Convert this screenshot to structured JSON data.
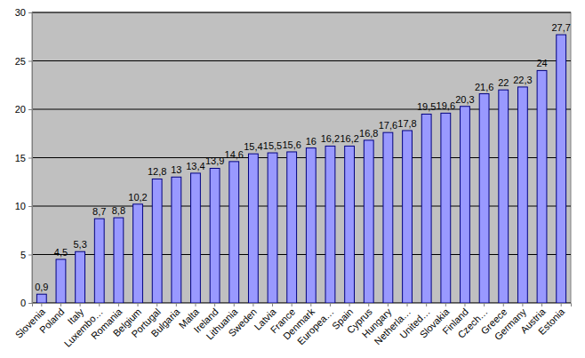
{
  "chart_data": {
    "type": "bar",
    "categories": [
      "Slovenia",
      "Poland",
      "Italy",
      "Luxembo…",
      "Romania",
      "Belgium",
      "Portugal",
      "Bulgaria",
      "Malta",
      "Ireland",
      "Lithuania",
      "Sweden",
      "Latvia",
      "France",
      "Denmark",
      "Europea…",
      "Spain",
      "Cyprus",
      "Hungary",
      "Netherla…",
      "United…",
      "Slovakia",
      "Finland",
      "Czech…",
      "Greece",
      "Germany",
      "Austria",
      "Estonia"
    ],
    "values": [
      0.9,
      4.5,
      5.3,
      8.7,
      8.8,
      10.2,
      12.8,
      13,
      13.4,
      13.9,
      14.6,
      15.4,
      15.5,
      15.6,
      16,
      16.2,
      16.2,
      16.8,
      17.6,
      17.8,
      19.5,
      19.6,
      20.3,
      21.6,
      22,
      22.3,
      24,
      27.7
    ],
    "value_labels": [
      "0,9",
      "4,5",
      "5,3",
      "8,7",
      "8,8",
      "10,2",
      "12,8",
      "13",
      "13,4",
      "13,9",
      "14,6",
      "15,4",
      "15,5",
      "15,6",
      "16",
      "16,2",
      "16,2",
      "16,8",
      "17,6",
      "17,8",
      "19,5",
      "19,6",
      "20,3",
      "21,6",
      "22",
      "22,3",
      "24",
      "27,7"
    ],
    "color": "#9999ff",
    "ylim": [
      0,
      30
    ],
    "yticks": [
      0,
      5,
      10,
      15,
      20,
      25,
      30
    ],
    "grid": true,
    "data_labels": true
  }
}
